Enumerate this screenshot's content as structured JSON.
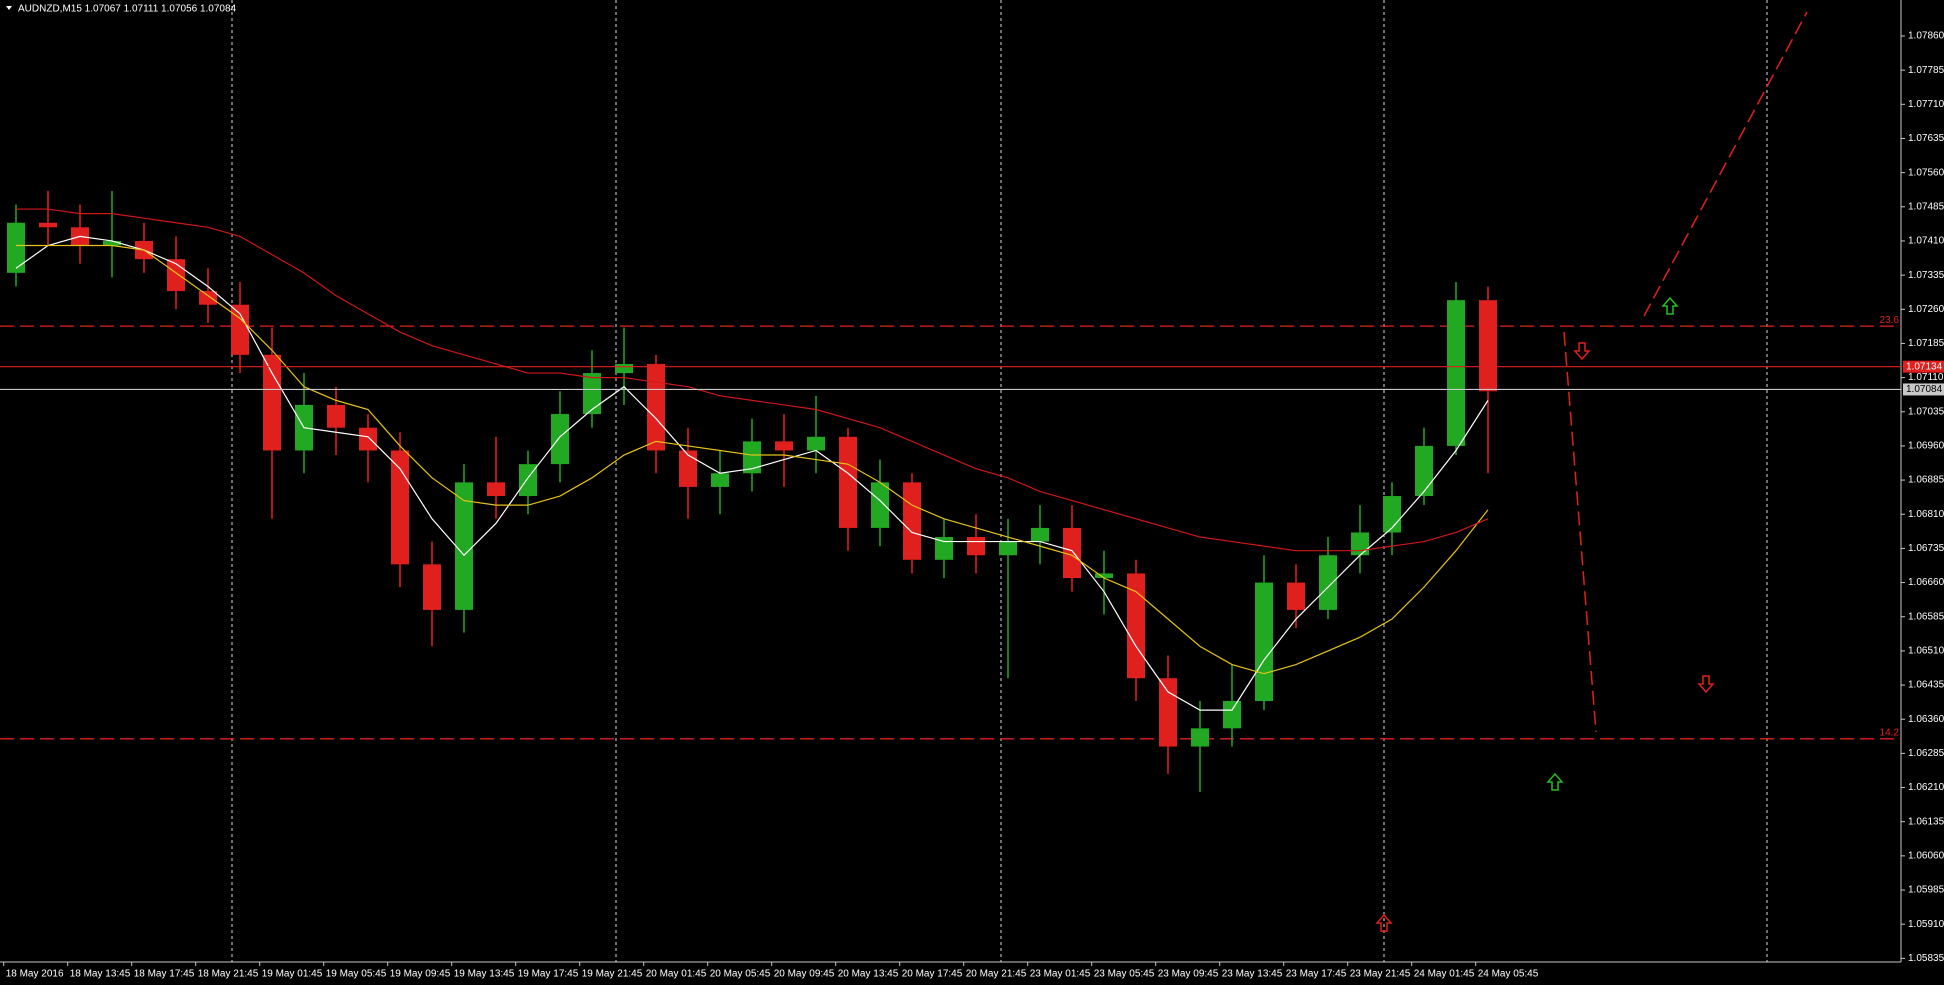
{
  "chart_data": {
    "type": "candlestick",
    "title": "AUDNZD,M15  1.07067 1.07111 1.07056 1.07084",
    "ylim": [
      1.05827,
      1.07939
    ],
    "yticks": [
      {
        "value": 1.0786,
        "label": "1.07860"
      },
      {
        "value": 1.07785,
        "label": "1.07785"
      },
      {
        "value": 1.0771,
        "label": "1.07710"
      },
      {
        "value": 1.07635,
        "label": "1.07635"
      },
      {
        "value": 1.0756,
        "label": "1.07560"
      },
      {
        "value": 1.07485,
        "label": "1.07485"
      },
      {
        "value": 1.0741,
        "label": "1.07410"
      },
      {
        "value": 1.07335,
        "label": "1.07335"
      },
      {
        "value": 1.0726,
        "label": "1.07260"
      },
      {
        "value": 1.07185,
        "label": "1.07185"
      },
      {
        "value": 1.0711,
        "label": "1.07110"
      },
      {
        "value": 1.07035,
        "label": "1.07035"
      },
      {
        "value": 1.0696,
        "label": "1.06960"
      },
      {
        "value": 1.06885,
        "label": "1.06885"
      },
      {
        "value": 1.0681,
        "label": "1.06810"
      },
      {
        "value": 1.06735,
        "label": "1.06735"
      },
      {
        "value": 1.0666,
        "label": "1.06660"
      },
      {
        "value": 1.06585,
        "label": "1.06585"
      },
      {
        "value": 1.0651,
        "label": "1.06510"
      },
      {
        "value": 1.06435,
        "label": "1.06435"
      },
      {
        "value": 1.0636,
        "label": "1.06360"
      },
      {
        "value": 1.06285,
        "label": "1.06285"
      },
      {
        "value": 1.0621,
        "label": "1.06210"
      },
      {
        "value": 1.06135,
        "label": "1.06135"
      },
      {
        "value": 1.0606,
        "label": "1.06060"
      },
      {
        "value": 1.05985,
        "label": "1.05985"
      },
      {
        "value": 1.0591,
        "label": "1.05910"
      },
      {
        "value": 1.05835,
        "label": "1.05835"
      }
    ],
    "time_labels": [
      "18 May 2016",
      "18 May 13:45",
      "18 May 17:45",
      "18 May 21:45",
      "19 May 01:45",
      "19 May 05:45",
      "19 May 09:45",
      "19 May 13:45",
      "19 May 17:45",
      "19 May 21:45",
      "20 May 01:45",
      "20 May 05:45",
      "20 May 09:45",
      "20 May 13:45",
      "20 May 17:45",
      "20 May 21:45",
      "23 May 01:45",
      "23 May 05:45",
      "23 May 09:45",
      "23 May 13:45",
      "23 May 17:45",
      "23 May 21:45",
      "24 May 01:45",
      "24 May 05:45"
    ],
    "bull_color": "#22a822",
    "bear_color": "#e0201e",
    "ohlc": [
      [
        1.0734,
        1.0749,
        1.0731,
        1.0745
      ],
      [
        1.0745,
        1.0752,
        1.074,
        1.0744
      ],
      [
        1.0744,
        1.0749,
        1.0736,
        1.074
      ],
      [
        1.074,
        1.0752,
        1.0733,
        1.0741
      ],
      [
        1.0741,
        1.0745,
        1.0734,
        1.0737
      ],
      [
        1.0737,
        1.0742,
        1.0726,
        1.073
      ],
      [
        1.073,
        1.0735,
        1.0723,
        1.0727
      ],
      [
        1.0727,
        1.0732,
        1.0712,
        1.0716
      ],
      [
        1.0716,
        1.0722,
        1.068,
        1.0695
      ],
      [
        1.0695,
        1.0712,
        1.069,
        1.0705
      ],
      [
        1.0705,
        1.0709,
        1.0694,
        1.07
      ],
      [
        1.07,
        1.0703,
        1.0688,
        1.0695
      ],
      [
        1.0695,
        1.0699,
        1.0665,
        1.067
      ],
      [
        1.067,
        1.0675,
        1.0652,
        1.066
      ],
      [
        1.066,
        1.0692,
        1.0655,
        1.0688
      ],
      [
        1.0688,
        1.0698,
        1.068,
        1.0685
      ],
      [
        1.0685,
        1.0695,
        1.0681,
        1.0692
      ],
      [
        1.0692,
        1.0708,
        1.0688,
        1.0703
      ],
      [
        1.0703,
        1.0717,
        1.07,
        1.0712
      ],
      [
        1.0712,
        1.0722,
        1.0705,
        1.0714
      ],
      [
        1.0714,
        1.0716,
        1.069,
        1.0695
      ],
      [
        1.0695,
        1.07,
        1.068,
        1.0687
      ],
      [
        1.0687,
        1.0695,
        1.0681,
        1.069
      ],
      [
        1.069,
        1.0702,
        1.0686,
        1.0697
      ],
      [
        1.0697,
        1.0703,
        1.0687,
        1.0695
      ],
      [
        1.0695,
        1.0707,
        1.069,
        1.0698
      ],
      [
        1.0698,
        1.07,
        1.0673,
        1.0678
      ],
      [
        1.0678,
        1.0693,
        1.0674,
        1.0688
      ],
      [
        1.0688,
        1.069,
        1.0668,
        1.0671
      ],
      [
        1.0671,
        1.068,
        1.0667,
        1.0676
      ],
      [
        1.0676,
        1.0681,
        1.0668,
        1.0672
      ],
      [
        1.0672,
        1.068,
        1.0645,
        1.0675
      ],
      [
        1.0675,
        1.0683,
        1.067,
        1.0678
      ],
      [
        1.0678,
        1.0683,
        1.0664,
        1.0667
      ],
      [
        1.0667,
        1.0673,
        1.0659,
        1.0668
      ],
      [
        1.0668,
        1.0671,
        1.064,
        1.0645
      ],
      [
        1.0645,
        1.065,
        1.0624,
        1.063
      ],
      [
        1.063,
        1.064,
        1.062,
        1.0634
      ],
      [
        1.0634,
        1.0648,
        1.063,
        1.064
      ],
      [
        1.064,
        1.0672,
        1.0638,
        1.0666
      ],
      [
        1.0666,
        1.067,
        1.0656,
        1.066
      ],
      [
        1.066,
        1.0676,
        1.0658,
        1.0672
      ],
      [
        1.0672,
        1.0683,
        1.0668,
        1.0677
      ],
      [
        1.0677,
        1.0688,
        1.0672,
        1.0685
      ],
      [
        1.0685,
        1.07,
        1.0683,
        1.0696
      ],
      [
        1.0696,
        1.0732,
        1.0694,
        1.0728
      ],
      [
        1.0728,
        1.0731,
        1.069,
        1.0708
      ]
    ],
    "series": [
      {
        "color": "#ffffff",
        "values": [
          1.0735,
          1.074,
          1.0742,
          1.0741,
          1.0739,
          1.0736,
          1.0731,
          1.0725,
          1.0712,
          1.07,
          1.0699,
          1.0698,
          1.0691,
          1.068,
          1.0672,
          1.0679,
          1.0689,
          1.0698,
          1.0704,
          1.0709,
          1.0702,
          1.0694,
          1.069,
          1.0691,
          1.0693,
          1.0695,
          1.069,
          1.0684,
          1.0677,
          1.0675,
          1.0675,
          1.0675,
          1.0675,
          1.0673,
          1.0664,
          1.0652,
          1.0642,
          1.0638,
          1.0638,
          1.0649,
          1.0658,
          1.0665,
          1.0672,
          1.0678,
          1.0686,
          1.0695,
          1.0706
        ]
      },
      {
        "color": "#e6c21a",
        "values": [
          1.074,
          1.074,
          1.074,
          1.074,
          1.0739,
          1.0734,
          1.0729,
          1.0724,
          1.0717,
          1.0709,
          1.0706,
          1.0704,
          1.0696,
          1.0689,
          1.0684,
          1.0683,
          1.0683,
          1.0685,
          1.0689,
          1.0694,
          1.0697,
          1.0696,
          1.0695,
          1.0694,
          1.0694,
          1.0693,
          1.0692,
          1.0688,
          1.0683,
          1.068,
          1.0678,
          1.0676,
          1.0674,
          1.0672,
          1.0667,
          1.0664,
          1.0658,
          1.0652,
          1.0648,
          1.0646,
          1.0648,
          1.0651,
          1.0654,
          1.0658,
          1.0665,
          1.0673,
          1.0682
        ]
      },
      {
        "color": "#d01818",
        "values": [
          1.0748,
          1.0748,
          1.0747,
          1.0747,
          1.0746,
          1.0745,
          1.0744,
          1.0742,
          1.0738,
          1.0734,
          1.0729,
          1.0725,
          1.0721,
          1.0718,
          1.0716,
          1.0714,
          1.0712,
          1.0712,
          1.0711,
          1.0711,
          1.071,
          1.0709,
          1.0707,
          1.0706,
          1.0705,
          1.0704,
          1.0702,
          1.07,
          1.0697,
          1.0694,
          1.0691,
          1.0689,
          1.0686,
          1.0684,
          1.0682,
          1.068,
          1.0678,
          1.0676,
          1.0675,
          1.0674,
          1.0673,
          1.0673,
          1.0673,
          1.0674,
          1.0675,
          1.0677,
          1.068
        ]
      }
    ],
    "levels": [
      {
        "value": 1.07223,
        "label": "23.6",
        "color": "#e0201e"
      },
      {
        "value": 1.06317,
        "label": "14.2",
        "color": "#e0201e"
      }
    ],
    "price_lines": [
      {
        "value": 1.07134,
        "label": "1.07134",
        "color": "#e0201e",
        "text_color": "#ffffff"
      },
      {
        "value": 1.07084,
        "label": "1.07084",
        "color": "#c8c8c8",
        "text_color": "#000000"
      }
    ]
  }
}
